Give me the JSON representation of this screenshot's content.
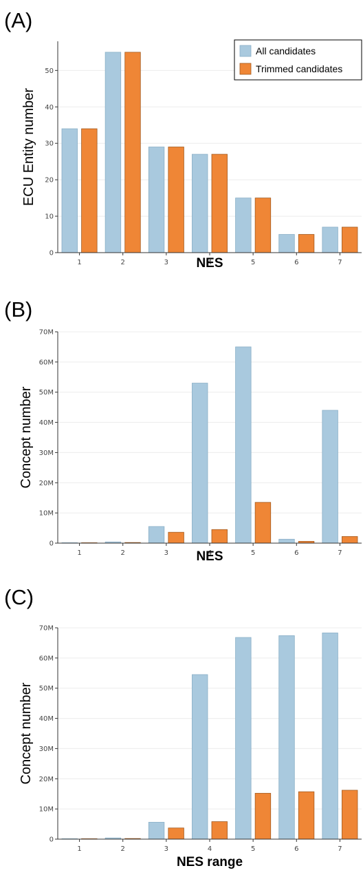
{
  "colors": {
    "all": "#a9c9de",
    "trimmed": "#ef8636",
    "all_stroke": "#8aafc7",
    "trimmed_stroke": "#a25a1f"
  },
  "panels": [
    {
      "label": "(A)"
    },
    {
      "label": "(B)"
    },
    {
      "label": "(C)"
    }
  ],
  "chart_data": [
    {
      "type": "bar",
      "categories": [
        "1",
        "2",
        "3",
        "4",
        "5",
        "6",
        "7"
      ],
      "series": [
        {
          "name": "All candidates",
          "values": [
            34,
            55,
            29,
            27,
            15,
            5,
            7
          ]
        },
        {
          "name": "Trimmed candidates",
          "values": [
            34,
            55,
            29,
            27,
            15,
            5,
            7
          ]
        }
      ],
      "xlabel": "NES",
      "ylabel": "ECU Entity number",
      "ylim": [
        0,
        58
      ],
      "yticks": [
        0,
        10,
        20,
        30,
        40,
        50
      ],
      "ytick_labels": [
        "0",
        "10",
        "20",
        "30",
        "40",
        "50"
      ],
      "legend": {
        "position": "top-right",
        "entries": [
          "All candidates",
          "Trimmed candidates"
        ]
      },
      "grid": true
    },
    {
      "type": "bar",
      "categories": [
        "1",
        "2",
        "3",
        "4",
        "5",
        "6",
        "7"
      ],
      "series": [
        {
          "name": "All candidates",
          "values": [
            0.1,
            0.4,
            5.5,
            53,
            65,
            1.3,
            44
          ]
        },
        {
          "name": "Trimmed candidates",
          "values": [
            0.05,
            0.2,
            3.6,
            4.5,
            13.5,
            0.6,
            2.2
          ]
        }
      ],
      "xlabel": "NES",
      "ylabel": "Concept number",
      "ylim": [
        0,
        70
      ],
      "yticks": [
        0,
        10,
        20,
        30,
        40,
        50,
        60,
        70
      ],
      "ytick_labels": [
        "0",
        "10M",
        "20M",
        "30M",
        "40M",
        "50M",
        "60M",
        "70M"
      ],
      "grid": true
    },
    {
      "type": "bar",
      "categories": [
        "1",
        "2",
        "3",
        "4",
        "5",
        "6",
        "7"
      ],
      "series": [
        {
          "name": "All candidates",
          "values": [
            0.1,
            0.4,
            5.6,
            54.5,
            66.8,
            67.4,
            68.3
          ]
        },
        {
          "name": "Trimmed candidates",
          "values": [
            0.05,
            0.2,
            3.7,
            5.8,
            15.2,
            15.7,
            16.2
          ]
        }
      ],
      "xlabel": "NES range",
      "ylabel": "Concept number",
      "ylim": [
        0,
        70
      ],
      "yticks": [
        0,
        10,
        20,
        30,
        40,
        50,
        60,
        70
      ],
      "ytick_labels": [
        "0",
        "10M",
        "20M",
        "30M",
        "40M",
        "50M",
        "60M",
        "70M"
      ],
      "grid": true
    }
  ]
}
